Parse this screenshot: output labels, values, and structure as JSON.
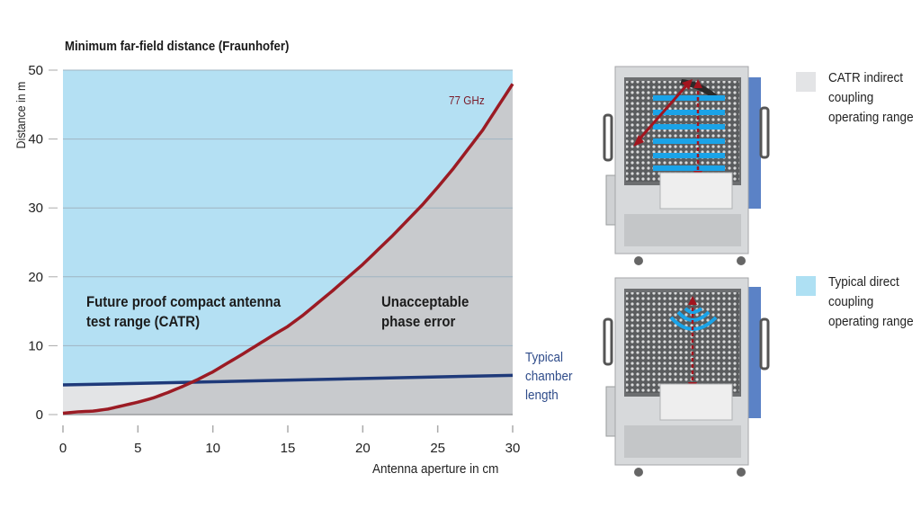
{
  "chart_data": {
    "type": "line",
    "title": "Minimum far-field distance (Fraunhofer)",
    "xlabel": "Antenna aperture in cm",
    "ylabel": "Distance in m",
    "xlim": [
      0,
      30
    ],
    "ylim": [
      0,
      50
    ],
    "xticks": [
      0,
      5,
      10,
      15,
      20,
      25,
      30
    ],
    "yticks": [
      0,
      10,
      20,
      30,
      40,
      50
    ],
    "grid": "horizontal",
    "series": [
      {
        "name": "77 GHz",
        "color": "#9b1b24",
        "x": [
          0,
          1,
          2,
          3,
          4,
          5,
          6,
          7,
          8,
          9,
          10,
          12,
          14,
          15,
          16,
          18,
          20,
          22,
          24,
          25,
          26,
          28,
          30
        ],
        "y": [
          0.2,
          0.4,
          0.5,
          0.8,
          1.3,
          1.8,
          2.4,
          3.2,
          4.1,
          5.1,
          6.2,
          8.8,
          11.5,
          12.8,
          14.4,
          18.0,
          21.8,
          26.0,
          30.5,
          33.0,
          35.6,
          41.3,
          48.0
        ]
      },
      {
        "name": "Typical chamber length",
        "color": "#1f3a7a",
        "x": [
          0,
          30
        ],
        "y": [
          4.3,
          5.7
        ]
      }
    ],
    "regions": [
      {
        "label": "Future proof compact antenna test range (CATR)",
        "color": "#b4e0f3",
        "description": "above 77 GHz curve"
      },
      {
        "label": "Unacceptable phase error",
        "color": "#c8cacd",
        "description": "below 77 GHz curve"
      },
      {
        "label": "CATR indirect coupling operating range",
        "color": "#e3e4e6",
        "description": "below chamber length, above curve"
      }
    ],
    "annotations": [
      "77 GHz",
      "Typical chamber length"
    ]
  },
  "legend": {
    "items": [
      {
        "label_lines": [
          "CATR indirect",
          "coupling",
          "operating range"
        ],
        "color": "#e3e4e6"
      },
      {
        "label_lines": [
          "Typical direct",
          "coupling",
          "operating range"
        ],
        "color": "#aee0f3"
      }
    ]
  },
  "labels": {
    "region_catr": [
      "Future proof compact antenna",
      "test range (CATR)"
    ],
    "region_unacceptable": [
      "Unacceptable",
      "phase error"
    ],
    "series_77ghz": "77 GHz",
    "chamber_length": [
      "Typical",
      "chamber",
      "length"
    ]
  },
  "images": [
    {
      "name": "chamber-indirect-coupling",
      "description": "Shielded test chamber with reflector, diagonal and vertical red arrows, blue plane-wave bars"
    },
    {
      "name": "chamber-direct-coupling",
      "description": "Shielded test chamber with blue wave arcs and vertical red arrow"
    }
  ],
  "colors": {
    "sky": "#b4e0f3",
    "gray": "#c8cacd",
    "light_gray": "#e3e4e6",
    "curve": "#9b1b24",
    "chamber_line": "#1f3a7a",
    "gridline": "#9fb4c2"
  }
}
